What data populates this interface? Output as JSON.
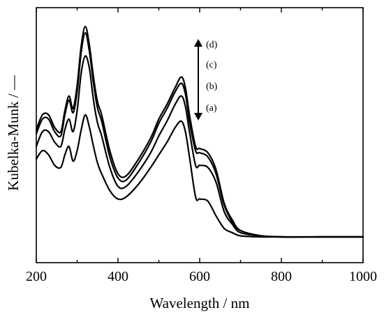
{
  "chart_data": {
    "type": "line",
    "xlabel": "Wavelength  / nm",
    "ylabel": "Kubelka-Munk / —",
    "xlim": [
      200,
      1000
    ],
    "ylim": [
      0,
      1
    ],
    "xticks": [
      200,
      400,
      600,
      800,
      1000
    ],
    "y_tick_labels": "none",
    "grid": false,
    "legend": "none",
    "annotations": [
      {
        "text": "(d)",
        "position": "arrow top"
      },
      {
        "text": "(c)",
        "position": "arrow upper-middle"
      },
      {
        "text": "(b)",
        "position": "arrow lower-middle"
      },
      {
        "text": "(a)",
        "position": "arrow bottom"
      }
    ],
    "arrow": {
      "direction": "double-headed vertical",
      "x": 555
    },
    "series": [
      {
        "name": "(a)",
        "x": [
          200,
          215,
          230,
          245,
          260,
          270,
          280,
          290,
          300,
          310,
          320,
          330,
          340,
          350,
          360,
          380,
          400,
          420,
          450,
          480,
          500,
          520,
          540,
          555,
          565,
          575,
          590,
          600,
          620,
          640,
          660,
          680,
          700,
          750,
          800,
          900,
          1000
        ],
        "y": [
          0.37,
          0.41,
          0.39,
          0.34,
          0.33,
          0.39,
          0.43,
          0.36,
          0.41,
          0.51,
          0.58,
          0.52,
          0.43,
          0.35,
          0.3,
          0.22,
          0.18,
          0.19,
          0.25,
          0.33,
          0.39,
          0.45,
          0.52,
          0.55,
          0.5,
          0.38,
          0.19,
          0.18,
          0.17,
          0.1,
          0.04,
          0.02,
          0.005,
          0.0,
          0.0,
          0.0,
          0.0
        ]
      },
      {
        "name": "(b)",
        "x": [
          200,
          215,
          230,
          245,
          260,
          270,
          280,
          290,
          300,
          310,
          320,
          330,
          340,
          350,
          360,
          380,
          400,
          420,
          450,
          480,
          500,
          520,
          540,
          555,
          565,
          575,
          590,
          600,
          620,
          640,
          660,
          680,
          700,
          750,
          800,
          900,
          1000
        ],
        "y": [
          0.43,
          0.5,
          0.5,
          0.45,
          0.43,
          0.51,
          0.56,
          0.5,
          0.6,
          0.78,
          0.86,
          0.8,
          0.65,
          0.54,
          0.48,
          0.33,
          0.24,
          0.24,
          0.31,
          0.4,
          0.48,
          0.55,
          0.63,
          0.67,
          0.62,
          0.5,
          0.34,
          0.34,
          0.33,
          0.26,
          0.12,
          0.06,
          0.02,
          0.005,
          0.0,
          0.0,
          0.0
        ]
      },
      {
        "name": "(c)",
        "x": [
          200,
          215,
          230,
          245,
          260,
          270,
          280,
          290,
          300,
          310,
          320,
          330,
          340,
          350,
          360,
          380,
          400,
          420,
          450,
          480,
          500,
          520,
          540,
          555,
          565,
          575,
          590,
          600,
          620,
          640,
          660,
          680,
          700,
          750,
          800,
          900,
          1000
        ],
        "y": [
          0.49,
          0.56,
          0.56,
          0.5,
          0.48,
          0.58,
          0.65,
          0.59,
          0.69,
          0.88,
          0.97,
          0.88,
          0.73,
          0.61,
          0.55,
          0.38,
          0.28,
          0.27,
          0.35,
          0.45,
          0.54,
          0.61,
          0.69,
          0.73,
          0.68,
          0.55,
          0.41,
          0.4,
          0.38,
          0.3,
          0.15,
          0.07,
          0.03,
          0.005,
          0.0,
          0.0,
          0.0
        ]
      },
      {
        "name": "(d)",
        "x": [
          200,
          215,
          230,
          245,
          260,
          270,
          280,
          290,
          300,
          310,
          320,
          330,
          340,
          350,
          360,
          380,
          400,
          420,
          450,
          480,
          500,
          520,
          540,
          555,
          565,
          575,
          590,
          600,
          620,
          640,
          660,
          680,
          700,
          750,
          800,
          900,
          1000
        ],
        "y": [
          0.51,
          0.58,
          0.58,
          0.52,
          0.5,
          0.6,
          0.67,
          0.61,
          0.72,
          0.91,
          1.0,
          0.91,
          0.76,
          0.64,
          0.58,
          0.41,
          0.3,
          0.29,
          0.37,
          0.47,
          0.56,
          0.63,
          0.71,
          0.76,
          0.71,
          0.58,
          0.43,
          0.42,
          0.4,
          0.32,
          0.16,
          0.08,
          0.03,
          0.005,
          0.0,
          0.0,
          0.0
        ]
      }
    ]
  }
}
